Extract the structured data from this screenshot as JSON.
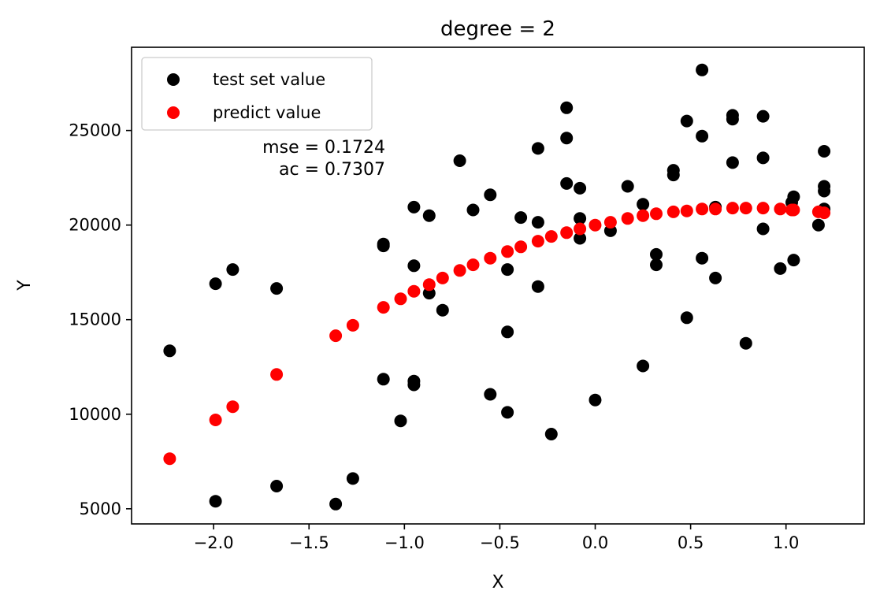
{
  "chart_data": {
    "type": "scatter",
    "title": "degree = 2",
    "xlabel": "X",
    "ylabel": "Y",
    "xlim": [
      -2.43,
      1.41
    ],
    "ylim": [
      4200,
      29400
    ],
    "xticks": [
      -2.0,
      -1.5,
      -1.0,
      -0.5,
      0.0,
      0.5,
      1.0
    ],
    "xtick_labels": [
      "−2.0",
      "−1.5",
      "−1.0",
      "−0.5",
      "0.0",
      "0.5",
      "1.0"
    ],
    "yticks": [
      5000,
      10000,
      15000,
      20000,
      25000
    ],
    "ytick_labels": [
      "5000",
      "10000",
      "15000",
      "20000",
      "25000"
    ],
    "grid": false,
    "legend_position": "top-left",
    "annotations": [
      "mse = 0.1724",
      "ac = 0.7307"
    ],
    "series": [
      {
        "name": "test set value",
        "color": "#000000",
        "points": [
          [
            -2.23,
            13350
          ],
          [
            -1.99,
            16900
          ],
          [
            -1.99,
            5400
          ],
          [
            -1.9,
            17650
          ],
          [
            -1.67,
            16650
          ],
          [
            -1.67,
            6200
          ],
          [
            -1.36,
            5250
          ],
          [
            -1.27,
            6600
          ],
          [
            -1.11,
            19000
          ],
          [
            -1.11,
            18900
          ],
          [
            -1.11,
            11850
          ],
          [
            -1.02,
            9650
          ],
          [
            -0.95,
            20950
          ],
          [
            -0.95,
            17850
          ],
          [
            -0.95,
            11750
          ],
          [
            -0.95,
            11550
          ],
          [
            -0.87,
            20500
          ],
          [
            -0.87,
            16400
          ],
          [
            -0.8,
            15500
          ],
          [
            -0.71,
            23400
          ],
          [
            -0.64,
            20800
          ],
          [
            -0.55,
            21600
          ],
          [
            -0.55,
            11050
          ],
          [
            -0.46,
            17650
          ],
          [
            -0.46,
            14350
          ],
          [
            -0.46,
            10100
          ],
          [
            -0.39,
            20400
          ],
          [
            -0.3,
            24050
          ],
          [
            -0.3,
            20150
          ],
          [
            -0.3,
            16750
          ],
          [
            -0.23,
            8950
          ],
          [
            -0.15,
            26200
          ],
          [
            -0.15,
            24600
          ],
          [
            -0.15,
            22200
          ],
          [
            -0.08,
            21950
          ],
          [
            -0.08,
            20350
          ],
          [
            -0.08,
            19300
          ],
          [
            0.0,
            10750
          ],
          [
            0.08,
            19700
          ],
          [
            0.17,
            22050
          ],
          [
            0.25,
            21100
          ],
          [
            0.25,
            12550
          ],
          [
            0.32,
            18450
          ],
          [
            0.32,
            17900
          ],
          [
            0.41,
            22900
          ],
          [
            0.41,
            22650
          ],
          [
            0.48,
            25500
          ],
          [
            0.48,
            15100
          ],
          [
            0.56,
            28200
          ],
          [
            0.56,
            24700
          ],
          [
            0.56,
            18250
          ],
          [
            0.63,
            20950
          ],
          [
            0.63,
            17200
          ],
          [
            0.72,
            25800
          ],
          [
            0.72,
            25600
          ],
          [
            0.72,
            23300
          ],
          [
            0.79,
            13750
          ],
          [
            0.88,
            25750
          ],
          [
            0.88,
            23550
          ],
          [
            0.88,
            19800
          ],
          [
            0.97,
            17700
          ],
          [
            1.03,
            21200
          ],
          [
            1.04,
            21500
          ],
          [
            1.04,
            18150
          ],
          [
            1.17,
            20000
          ],
          [
            1.2,
            23900
          ],
          [
            1.2,
            22050
          ],
          [
            1.2,
            21800
          ],
          [
            1.2,
            20850
          ]
        ]
      },
      {
        "name": "predict value",
        "color": "#ff0000",
        "points": [
          [
            -2.23,
            7650
          ],
          [
            -1.99,
            9700
          ],
          [
            -1.9,
            10400
          ],
          [
            -1.67,
            12100
          ],
          [
            -1.36,
            14150
          ],
          [
            -1.27,
            14700
          ],
          [
            -1.11,
            15650
          ],
          [
            -1.02,
            16100
          ],
          [
            -0.95,
            16500
          ],
          [
            -0.87,
            16850
          ],
          [
            -0.8,
            17200
          ],
          [
            -0.71,
            17600
          ],
          [
            -0.64,
            17900
          ],
          [
            -0.55,
            18250
          ],
          [
            -0.46,
            18600
          ],
          [
            -0.39,
            18850
          ],
          [
            -0.3,
            19150
          ],
          [
            -0.23,
            19400
          ],
          [
            -0.15,
            19600
          ],
          [
            -0.08,
            19800
          ],
          [
            0.0,
            20000
          ],
          [
            0.08,
            20150
          ],
          [
            0.17,
            20350
          ],
          [
            0.25,
            20500
          ],
          [
            0.32,
            20600
          ],
          [
            0.41,
            20700
          ],
          [
            0.48,
            20750
          ],
          [
            0.56,
            20850
          ],
          [
            0.63,
            20850
          ],
          [
            0.72,
            20900
          ],
          [
            0.79,
            20900
          ],
          [
            0.88,
            20900
          ],
          [
            0.97,
            20850
          ],
          [
            1.03,
            20800
          ],
          [
            1.04,
            20800
          ],
          [
            1.17,
            20700
          ],
          [
            1.2,
            20650
          ]
        ]
      }
    ]
  }
}
